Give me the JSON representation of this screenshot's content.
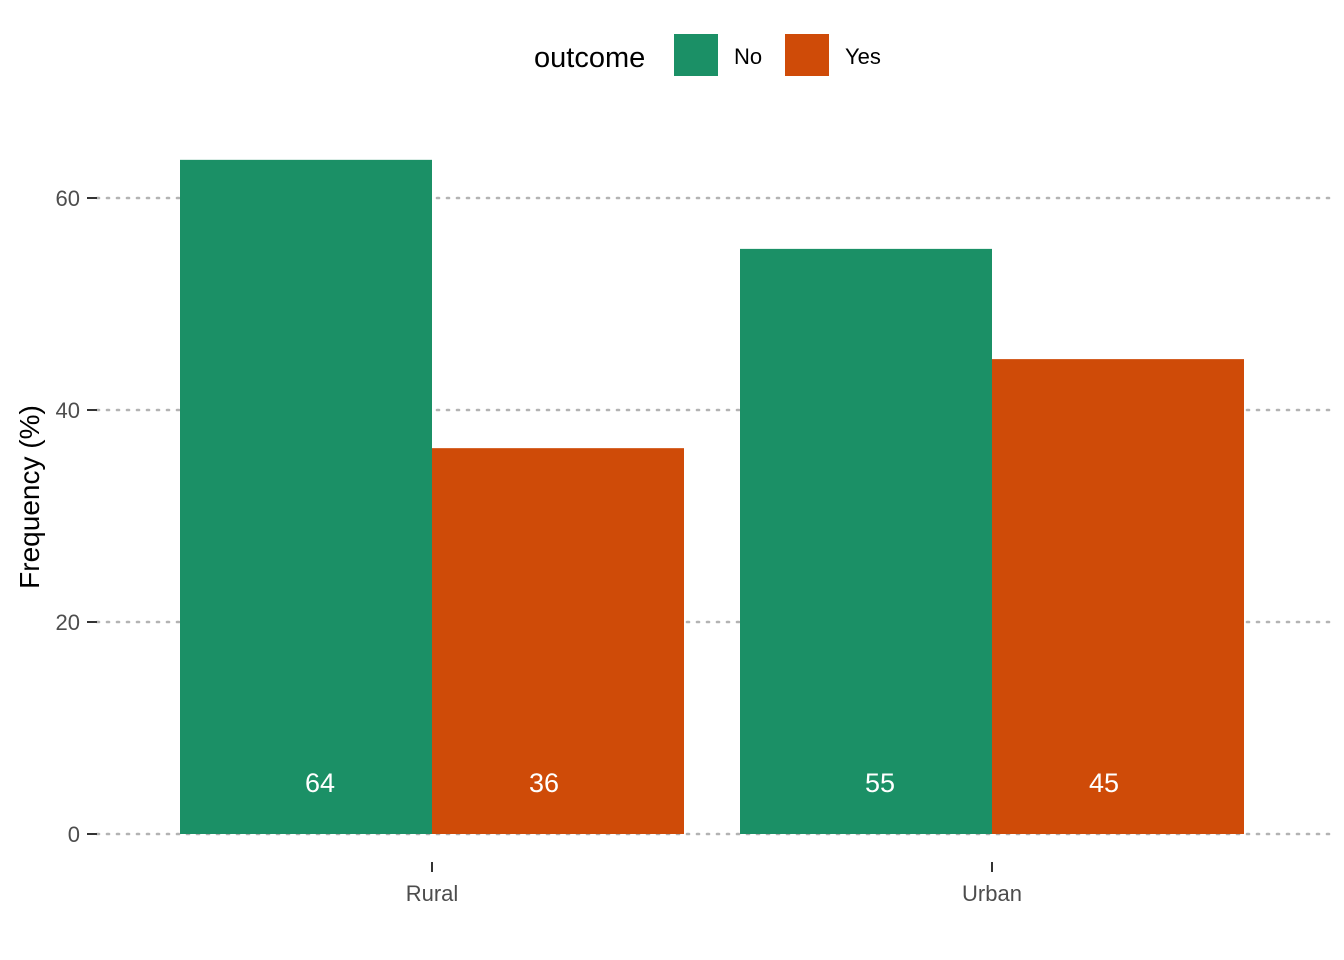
{
  "chart_data": {
    "type": "bar",
    "categories": [
      "Rural",
      "Urban"
    ],
    "series": [
      {
        "name": "No",
        "values": [
          64,
          55
        ],
        "color": "#1b9066"
      },
      {
        "name": "Yes",
        "values": [
          36,
          45
        ],
        "color": "#cf4b08"
      }
    ],
    "bar_heights_exact": {
      "No": [
        63.6,
        55.2
      ],
      "Yes": [
        36.4,
        44.8
      ]
    },
    "data_labels": {
      "No": [
        "64",
        "55"
      ],
      "Yes": [
        "36",
        "45"
      ]
    },
    "xlabel": "",
    "ylabel": "Frequency (%)",
    "ylim": [
      0,
      66
    ],
    "yticks": [
      0,
      20,
      40,
      60
    ],
    "ytick_labels": [
      "0",
      "20",
      "40",
      "60"
    ],
    "grid": "horizontal dotted",
    "legend": {
      "title": "outcome",
      "position": "top",
      "entries": [
        "No",
        "Yes"
      ]
    }
  }
}
